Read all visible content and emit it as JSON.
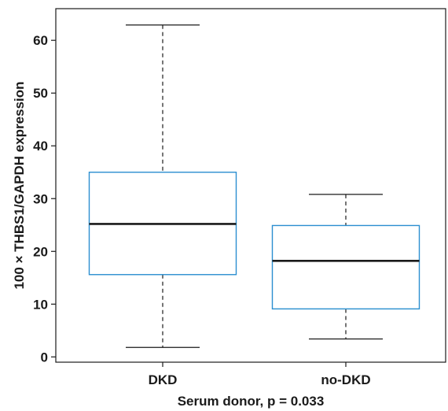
{
  "chart_data": {
    "type": "box",
    "xlabel": "Serum donor, p = 0.033",
    "ylabel": "100 × THBS1/GAPDH expression",
    "ylim": [
      -1,
      66
    ],
    "yticks": [
      0,
      10,
      20,
      30,
      40,
      50,
      60
    ],
    "grid": false,
    "legend": "none",
    "categories": [
      "DKD",
      "no-DKD"
    ],
    "boxes": [
      {
        "category": "DKD",
        "min": 1.8,
        "q1": 15.6,
        "median": 25.2,
        "q3": 35.0,
        "max": 62.9
      },
      {
        "category": "no-DKD",
        "min": 3.4,
        "q1": 9.1,
        "median": 18.2,
        "q3": 24.9,
        "max": 30.8
      }
    ],
    "colors": {
      "box": "#2b8fd0",
      "median": "#1a1a1a",
      "whisker": "#1a1a1a",
      "axis": "#1a1a1a"
    }
  }
}
